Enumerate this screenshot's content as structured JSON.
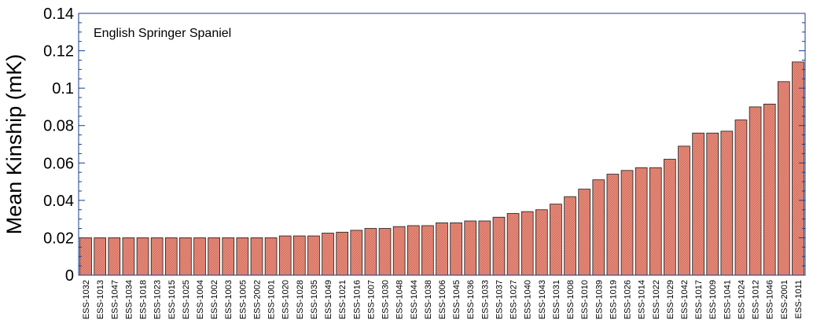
{
  "chart_data": {
    "type": "bar",
    "annotation": "English Springer Spaniel",
    "xlabel": "",
    "ylabel": "Mean Kinship (mK)",
    "ylim": [
      0,
      0.14
    ],
    "yticks": [
      0,
      0.02,
      0.04,
      0.06,
      0.08,
      0.1,
      0.12,
      0.14
    ],
    "ytick_labels": [
      "0",
      "0.02",
      "0.04",
      "0.06",
      "0.08",
      "0.1",
      "0.12",
      "0.14"
    ],
    "grid": false,
    "categories": [
      "ESS-1032",
      "ESS-1013",
      "ESS-1047",
      "ESS-1034",
      "ESS-1018",
      "ESS-1023",
      "ESS-1015",
      "ESS-1025",
      "ESS-1004",
      "ESS-1002",
      "ESS-1003",
      "ESS-1005",
      "ESS-2002",
      "ESS-1001",
      "ESS-1020",
      "ESS-1028",
      "ESS-1035",
      "ESS-1049",
      "ESS-1021",
      "ESS-1016",
      "ESS-1007",
      "ESS-1030",
      "ESS-1048",
      "ESS-1044",
      "ESS-1038",
      "ESS-1006",
      "ESS-1045",
      "ESS-1036",
      "ESS-1033",
      "ESS-1037",
      "ESS-1027",
      "ESS-1040",
      "ESS-1043",
      "ESS-1031",
      "ESS-1008",
      "ESS-1010",
      "ESS-1039",
      "ESS-1019",
      "ESS-1026",
      "ESS-1014",
      "ESS-1022",
      "ESS-1029",
      "ESS-1042",
      "ESS-1017",
      "ESS-1009",
      "ESS-1041",
      "ESS-1024",
      "ESS-1012",
      "ESS-1046",
      "ESS-2001",
      "ESS-1011"
    ],
    "values": [
      0.02,
      0.02,
      0.02,
      0.02,
      0.02,
      0.02,
      0.02,
      0.02,
      0.02,
      0.02,
      0.02,
      0.02,
      0.02,
      0.02,
      0.021,
      0.021,
      0.021,
      0.0225,
      0.023,
      0.024,
      0.025,
      0.025,
      0.026,
      0.0265,
      0.0265,
      0.028,
      0.028,
      0.029,
      0.029,
      0.031,
      0.033,
      0.034,
      0.035,
      0.038,
      0.042,
      0.046,
      0.051,
      0.054,
      0.056,
      0.0575,
      0.0575,
      0.062,
      0.069,
      0.076,
      0.076,
      0.077,
      0.083,
      0.09,
      0.0915,
      0.1035,
      0.114
    ],
    "colors": {
      "bar_fill": "#e88a7a",
      "bar_stroke": "#1a1a1a",
      "frame": "#1a3a8f",
      "text": "#000000"
    }
  }
}
